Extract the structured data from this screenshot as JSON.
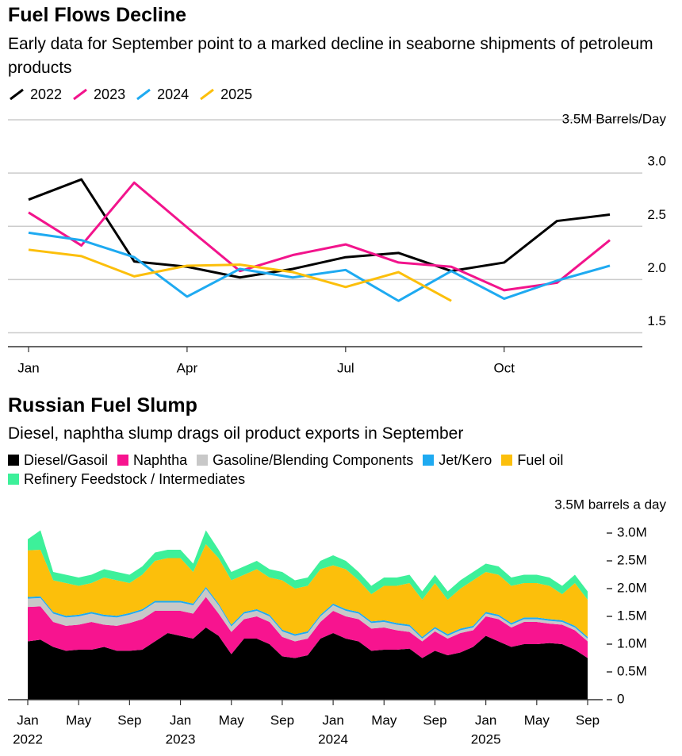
{
  "chart_data": [
    {
      "type": "line",
      "title": "Fuel Flows Decline",
      "subtitle": "Early data for September point to a marked decline in seaborne shipments of petroleum products",
      "categories": [
        "Jan",
        null,
        null,
        "Apr",
        null,
        null,
        "Jul",
        null,
        null,
        "Oct",
        null,
        null
      ],
      "series": [
        {
          "name": "2022",
          "color": "#000000",
          "values": [
            2.75,
            2.94,
            2.17,
            2.12,
            2.02,
            2.1,
            2.21,
            2.25,
            2.08,
            2.16,
            2.55,
            2.61
          ]
        },
        {
          "name": "2023",
          "color": "#f2148c",
          "values": [
            2.63,
            2.32,
            2.91,
            2.49,
            2.08,
            2.23,
            2.33,
            2.16,
            2.12,
            1.9,
            1.97,
            2.37
          ]
        },
        {
          "name": "2024",
          "color": "#1eaaf1",
          "values": [
            2.44,
            2.37,
            2.21,
            1.84,
            2.1,
            2.02,
            2.09,
            1.8,
            2.08,
            1.82,
            1.99,
            2.13
          ]
        },
        {
          "name": "2025",
          "color": "#fcbf0b",
          "values": [
            2.28,
            2.22,
            2.03,
            2.13,
            2.14,
            2.07,
            1.93,
            2.07,
            1.8,
            null,
            null,
            null
          ]
        }
      ],
      "ylim": [
        1.37,
        3.5
      ],
      "yticks": [
        1.5,
        {
          "value": 2,
          "label": "2.0"
        },
        2.5,
        {
          "value": 3,
          "label": "3.0"
        },
        {
          "value": 3.5,
          "label": "3.5M Barrels/Day"
        }
      ],
      "grid": true
    },
    {
      "type": "area",
      "stacked": true,
      "title": "Russian Fuel Slump",
      "subtitle": "Diesel, naphtha slump drags oil product exports in September",
      "categories": [
        "Jan",
        null,
        null,
        null,
        "May",
        null,
        null,
        null,
        "Sep",
        null,
        null,
        null,
        "Jan",
        null,
        null,
        null,
        "May",
        null,
        null,
        null,
        "Sep",
        null,
        null,
        null,
        "Jan",
        null,
        null,
        null,
        "May",
        null,
        null,
        null,
        "Sep",
        null,
        null,
        null,
        "Jan",
        null,
        null,
        null,
        "May",
        null,
        null,
        null,
        "Sep"
      ],
      "x_group_labels": [
        "2022",
        null,
        null,
        null,
        null,
        null,
        null,
        null,
        null,
        null,
        null,
        null,
        "2023",
        null,
        null,
        null,
        null,
        null,
        null,
        null,
        null,
        null,
        null,
        null,
        "2024",
        null,
        null,
        null,
        null,
        null,
        null,
        null,
        null,
        null,
        null,
        null,
        "2025",
        null,
        null,
        null,
        null,
        null,
        null,
        null,
        null
      ],
      "series": [
        {
          "name": "Diesel/Gasoil",
          "color": "#000000",
          "values": [
            1.05,
            1.08,
            0.95,
            0.88,
            0.9,
            0.9,
            0.95,
            0.88,
            0.88,
            0.9,
            1.05,
            1.2,
            1.15,
            1.1,
            1.3,
            1.15,
            0.82,
            1.1,
            1.1,
            1.0,
            0.78,
            0.75,
            0.8,
            1.1,
            1.2,
            1.1,
            1.05,
            0.88,
            0.9,
            0.9,
            0.92,
            0.75,
            0.88,
            0.8,
            0.85,
            0.95,
            1.15,
            1.05,
            0.95,
            1.0,
            1.0,
            1.02,
            1.0,
            0.9,
            0.75
          ]
        },
        {
          "name": "Naphtha",
          "color": "#f7148f",
          "values": [
            0.62,
            0.6,
            0.45,
            0.45,
            0.45,
            0.5,
            0.4,
            0.45,
            0.5,
            0.55,
            0.55,
            0.4,
            0.45,
            0.45,
            0.55,
            0.4,
            0.4,
            0.35,
            0.4,
            0.4,
            0.35,
            0.3,
            0.3,
            0.3,
            0.4,
            0.4,
            0.4,
            0.4,
            0.4,
            0.35,
            0.3,
            0.3,
            0.35,
            0.3,
            0.35,
            0.3,
            0.35,
            0.4,
            0.35,
            0.4,
            0.4,
            0.35,
            0.35,
            0.35,
            0.3
          ]
        },
        {
          "name": "Gasoline/Blending Components",
          "color": "#c8c8c8",
          "values": [
            0.15,
            0.15,
            0.15,
            0.15,
            0.15,
            0.15,
            0.15,
            0.15,
            0.15,
            0.15,
            0.15,
            0.15,
            0.15,
            0.15,
            0.15,
            0.15,
            0.1,
            0.1,
            0.1,
            0.1,
            0.1,
            0.1,
            0.1,
            0.1,
            0.1,
            0.1,
            0.1,
            0.1,
            0.1,
            0.1,
            0.1,
            0.05,
            0.05,
            0.05,
            0.05,
            0.05,
            0.05,
            0.05,
            0.05,
            0.05,
            0.05,
            0.05,
            0.05,
            0.05,
            0.05
          ]
        },
        {
          "name": "Jet/Kero",
          "color": "#1eaaf1",
          "values": [
            0.03,
            0.03,
            0.03,
            0.03,
            0.03,
            0.03,
            0.03,
            0.03,
            0.03,
            0.03,
            0.03,
            0.03,
            0.03,
            0.03,
            0.03,
            0.03,
            0.03,
            0.03,
            0.03,
            0.03,
            0.03,
            0.03,
            0.03,
            0.03,
            0.03,
            0.03,
            0.03,
            0.03,
            0.03,
            0.03,
            0.03,
            0.03,
            0.03,
            0.03,
            0.03,
            0.03,
            0.03,
            0.03,
            0.03,
            0.03,
            0.03,
            0.03,
            0.03,
            0.03,
            0.03
          ]
        },
        {
          "name": "Fuel oil",
          "color": "#fcbf0b",
          "values": [
            0.84,
            0.84,
            0.57,
            0.59,
            0.52,
            0.52,
            0.67,
            0.64,
            0.54,
            0.62,
            0.72,
            0.77,
            0.77,
            0.57,
            0.77,
            0.82,
            0.8,
            0.67,
            0.72,
            0.67,
            0.89,
            0.82,
            0.82,
            0.82,
            0.69,
            0.72,
            0.57,
            0.49,
            0.62,
            0.67,
            0.75,
            0.67,
            0.79,
            0.62,
            0.72,
            0.82,
            0.72,
            0.72,
            0.67,
            0.62,
            0.62,
            0.6,
            0.47,
            0.77,
            0.67
          ]
        },
        {
          "name": "Refinery Feedstock / Intermediates",
          "color": "#3df09a",
          "values": [
            0.2,
            0.35,
            0.15,
            0.15,
            0.15,
            0.15,
            0.15,
            0.15,
            0.15,
            0.15,
            0.15,
            0.15,
            0.15,
            0.15,
            0.25,
            0.15,
            0.15,
            0.15,
            0.15,
            0.15,
            0.15,
            0.15,
            0.15,
            0.15,
            0.18,
            0.15,
            0.15,
            0.15,
            0.15,
            0.15,
            0.15,
            0.15,
            0.15,
            0.15,
            0.15,
            0.15,
            0.15,
            0.15,
            0.15,
            0.15,
            0.15,
            0.15,
            0.15,
            0.15,
            0.15
          ]
        }
      ],
      "ylim": [
        0,
        3.5
      ],
      "yticks": [
        0,
        {
          "value": 0.5,
          "label": "0.5M"
        },
        {
          "value": 1,
          "label": "1.0M"
        },
        {
          "value": 1.5,
          "label": "1.5M"
        },
        {
          "value": 2,
          "label": "2.0M"
        },
        {
          "value": 2.5,
          "label": "2.5M"
        },
        {
          "value": 3,
          "label": "3.0M"
        },
        {
          "value": 3.5,
          "label": "3.5M barrels a day"
        }
      ],
      "grid": false
    }
  ]
}
